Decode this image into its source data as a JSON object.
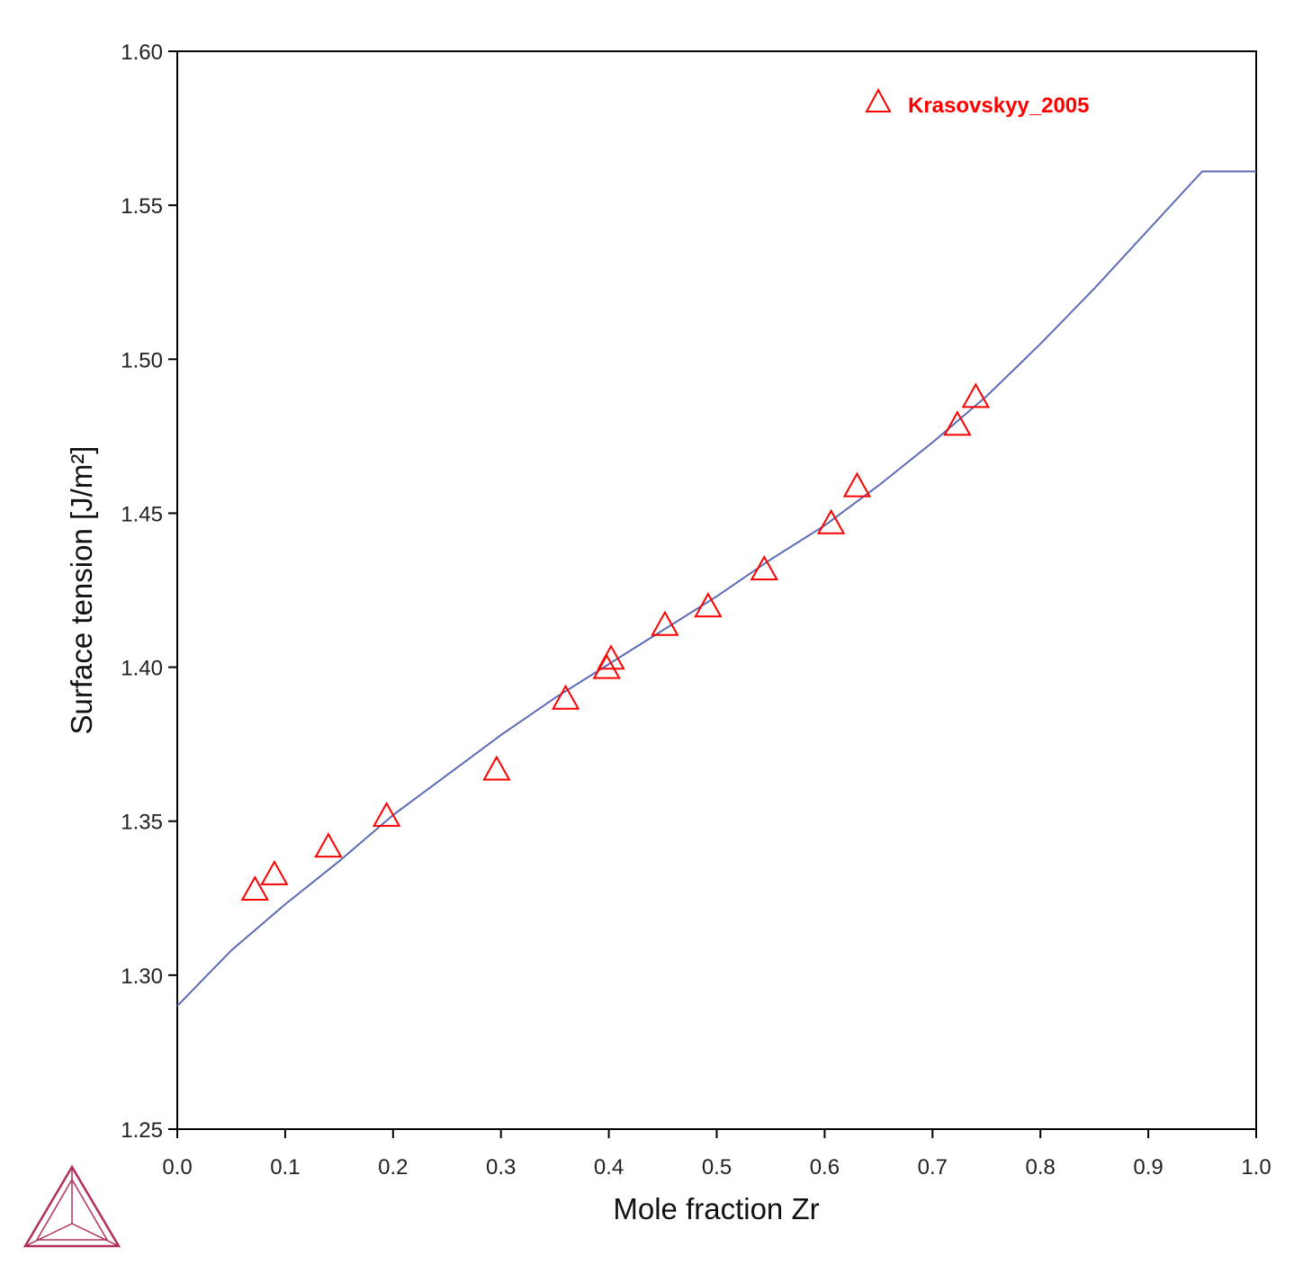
{
  "chart_data": {
    "type": "line",
    "xlabel": "Mole fraction Zr",
    "ylabel": "Surface tension [J/m²]",
    "xlim": [
      0.0,
      1.0
    ],
    "ylim": [
      1.25,
      1.6
    ],
    "x_ticks": [
      "0.0",
      "0.1",
      "0.2",
      "0.3",
      "0.4",
      "0.5",
      "0.6",
      "0.7",
      "0.8",
      "0.9",
      "1.0"
    ],
    "y_ticks": [
      "1.25",
      "1.30",
      "1.35",
      "1.40",
      "1.45",
      "1.50",
      "1.55",
      "1.60"
    ],
    "grid": false,
    "legend_position": "top-right",
    "series": [
      {
        "kind": "line",
        "color": "#5b6bb5",
        "x": [
          0.0,
          0.05,
          0.1,
          0.15,
          0.2,
          0.25,
          0.3,
          0.35,
          0.4,
          0.45,
          0.5,
          0.55,
          0.6,
          0.65,
          0.7,
          0.75,
          0.8,
          0.85,
          0.9,
          0.95,
          1.0
        ],
        "y": [
          1.29,
          1.308,
          1.323,
          1.337,
          1.352,
          1.365,
          1.378,
          1.39,
          1.401,
          1.412,
          1.423,
          1.435,
          1.446,
          1.459,
          1.473,
          1.488,
          1.505,
          1.523,
          1.542,
          1.561,
          1.561
        ]
      },
      {
        "kind": "scatter",
        "name": "Krasovskyy_2005",
        "marker": "triangle",
        "color": "#ff0000",
        "x": [
          0.072,
          0.09,
          0.14,
          0.194,
          0.296,
          0.36,
          0.398,
          0.402,
          0.452,
          0.492,
          0.544,
          0.606,
          0.63,
          0.723,
          0.74
        ],
        "y": [
          1.328,
          1.333,
          1.342,
          1.352,
          1.367,
          1.39,
          1.4,
          1.403,
          1.414,
          1.42,
          1.432,
          1.447,
          1.459,
          1.479,
          1.488
        ]
      }
    ]
  }
}
